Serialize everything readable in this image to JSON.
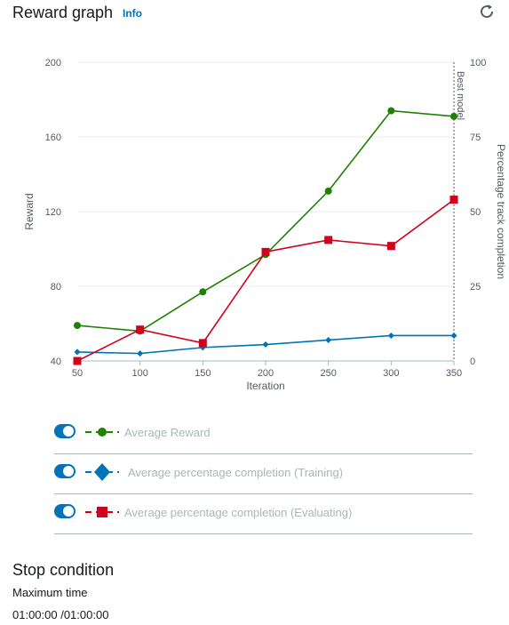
{
  "header": {
    "title": "Reward graph",
    "info_label": "Info",
    "refresh_icon": "refresh-icon"
  },
  "chart_data": {
    "type": "line",
    "x": [
      50,
      100,
      150,
      200,
      250,
      300,
      350
    ],
    "xlabel": "Iteration",
    "ylabel_left": "Reward",
    "ylabel_right": "Percentage track completion",
    "ylim_left": [
      40,
      200
    ],
    "ylim_right": [
      0,
      100
    ],
    "xlim": [
      50,
      350
    ],
    "x_ticks": [
      "50",
      "100",
      "150",
      "200",
      "250",
      "300",
      "350"
    ],
    "y_ticks_left": [
      "200",
      "160",
      "120",
      "80",
      "40"
    ],
    "y_ticks_right": [
      "100",
      "75",
      "50",
      "25",
      "0"
    ],
    "grid": true,
    "annotation": {
      "label": "Best model",
      "x": 350
    },
    "series": [
      {
        "name": "Average Reward",
        "axis": "left",
        "color": "#1d8102",
        "marker": "circle",
        "values": [
          59,
          56,
          77,
          97,
          131,
          174,
          171
        ]
      },
      {
        "name": "Average percentage completion (Training)",
        "axis": "right",
        "color": "#0073bb",
        "marker": "diamond",
        "values": [
          3,
          2.5,
          4.5,
          5.5,
          7,
          8.5,
          8.5
        ]
      },
      {
        "name": "Average percentage completion (Evaluating)",
        "axis": "right",
        "color": "#d0021b",
        "marker": "square",
        "values": [
          0,
          10.5,
          6,
          36.5,
          40.5,
          38.5,
          54
        ]
      }
    ]
  },
  "legend": [
    {
      "label": "Average Reward",
      "color": "#1d8102",
      "marker": "circle"
    },
    {
      "label": "Average percentage completion (Training)",
      "color": "#0073bb",
      "marker": "diamond"
    },
    {
      "label": "Average percentage completion (Evaluating)",
      "color": "#d0021b",
      "marker": "square"
    }
  ],
  "stop_condition": {
    "title": "Stop condition",
    "label": "Maximum time",
    "value": "01:00:00 /01:00:00"
  }
}
